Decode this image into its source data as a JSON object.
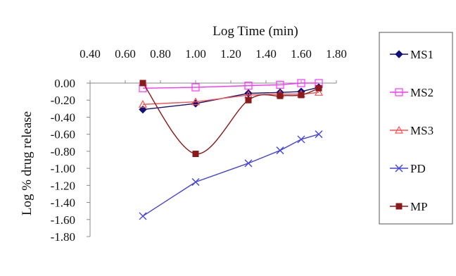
{
  "chart_data": {
    "type": "line",
    "xlabel": "Log Time (min)",
    "ylabel": "Log % drug release",
    "xlim": [
      0.4,
      1.8
    ],
    "ylim": [
      -1.8,
      0.0
    ],
    "x_ticks": [
      "0.40",
      "0.60",
      "0.80",
      "1.00",
      "1.20",
      "1.40",
      "1.60",
      "1.80"
    ],
    "y_ticks": [
      "0.00",
      "-0.20",
      "-0.40",
      "-0.60",
      "-0.80",
      "-1.00",
      "-1.20",
      "-1.40",
      "-1.60",
      "-1.80"
    ],
    "x_axis_position": "top",
    "grid": false,
    "legend_position": "right",
    "x": [
      0.7,
      1.0,
      1.3,
      1.48,
      1.6,
      1.7
    ],
    "series": [
      {
        "name": "MS1",
        "color": "#10107a",
        "marker": "diamond",
        "values": [
          -0.31,
          -0.24,
          -0.12,
          -0.11,
          -0.1,
          -0.05
        ]
      },
      {
        "name": "MS2",
        "color": "#ff33ff",
        "marker": "square-open",
        "values": [
          -0.06,
          -0.05,
          -0.03,
          -0.02,
          0.0,
          0.0
        ]
      },
      {
        "name": "MS3",
        "color": "#ff5050",
        "marker": "triangle-open",
        "values": [
          -0.25,
          -0.22,
          -0.14,
          -0.13,
          -0.13,
          -0.11
        ]
      },
      {
        "name": "PD",
        "color": "#4444dd",
        "marker": "x",
        "values": [
          -1.56,
          -1.16,
          -0.94,
          -0.79,
          -0.66,
          -0.6
        ]
      },
      {
        "name": "MP",
        "color": "#8b1a1a",
        "marker": "square",
        "values": [
          0.0,
          -0.83,
          -0.2,
          -0.15,
          -0.14,
          -0.06
        ]
      }
    ]
  }
}
